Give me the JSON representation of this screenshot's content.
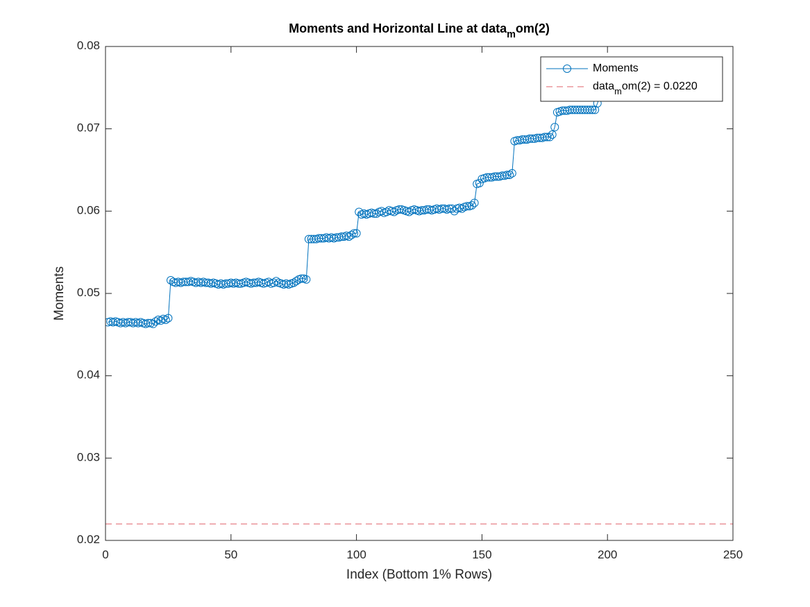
{
  "chart_data": {
    "type": "line",
    "title": "Moments and Horizontal Line at data_mom(2)",
    "x_label": "Index (Bottom 1% Rows)",
    "y_label": "Moments",
    "x": [
      1,
      2,
      3,
      4,
      5,
      6,
      7,
      8,
      9,
      10,
      11,
      12,
      13,
      14,
      15,
      16,
      17,
      18,
      19,
      20,
      21,
      22,
      23,
      24,
      25,
      26,
      27,
      28,
      29,
      30,
      31,
      32,
      33,
      34,
      35,
      36,
      37,
      38,
      39,
      40,
      41,
      42,
      43,
      44,
      45,
      46,
      47,
      48,
      49,
      50,
      51,
      52,
      53,
      54,
      55,
      56,
      57,
      58,
      59,
      60,
      61,
      62,
      63,
      64,
      65,
      66,
      67,
      68,
      69,
      70,
      71,
      72,
      73,
      74,
      75,
      76,
      77,
      78,
      79,
      80,
      81,
      82,
      83,
      84,
      85,
      86,
      87,
      88,
      89,
      90,
      91,
      92,
      93,
      94,
      95,
      96,
      97,
      98,
      99,
      100,
      101,
      102,
      103,
      104,
      105,
      106,
      107,
      108,
      109,
      110,
      111,
      112,
      113,
      114,
      115,
      116,
      117,
      118,
      119,
      120,
      121,
      122,
      123,
      124,
      125,
      126,
      127,
      128,
      129,
      130,
      131,
      132,
      133,
      134,
      135,
      136,
      137,
      138,
      139,
      140,
      141,
      142,
      143,
      144,
      145,
      146,
      147,
      148,
      149,
      150,
      151,
      152,
      153,
      154,
      155,
      156,
      157,
      158,
      159,
      160,
      161,
      162,
      163,
      164,
      165,
      166,
      167,
      168,
      169,
      170,
      171,
      172,
      173,
      174,
      175,
      176,
      177,
      178,
      179,
      180,
      181,
      182,
      183,
      184,
      185,
      186,
      187,
      188,
      189,
      190,
      191,
      192,
      193,
      194,
      195,
      196,
      197,
      198,
      199,
      200
    ],
    "series": [
      {
        "name": "Moments",
        "color": "#0072bd",
        "marker": "circle",
        "values": [
          0.0465,
          0.0466,
          0.0465,
          0.0466,
          0.0465,
          0.0464,
          0.0465,
          0.0464,
          0.0465,
          0.0465,
          0.0464,
          0.0465,
          0.0464,
          0.0465,
          0.0464,
          0.0463,
          0.0464,
          0.0464,
          0.0463,
          0.0466,
          0.0468,
          0.0467,
          0.0469,
          0.0468,
          0.047,
          0.0516,
          0.0514,
          0.0513,
          0.0514,
          0.0513,
          0.0514,
          0.0514,
          0.0514,
          0.0515,
          0.0514,
          0.0513,
          0.0514,
          0.0513,
          0.0514,
          0.0513,
          0.0513,
          0.0512,
          0.0513,
          0.0512,
          0.0511,
          0.0512,
          0.0511,
          0.0512,
          0.0512,
          0.0513,
          0.0512,
          0.0513,
          0.0512,
          0.0512,
          0.0513,
          0.0514,
          0.0513,
          0.0512,
          0.0513,
          0.0513,
          0.0514,
          0.0513,
          0.0512,
          0.0513,
          0.0514,
          0.0512,
          0.0513,
          0.0515,
          0.0513,
          0.0512,
          0.0511,
          0.0512,
          0.0511,
          0.0512,
          0.0513,
          0.0515,
          0.0517,
          0.0518,
          0.0518,
          0.0517,
          0.0566,
          0.0566,
          0.0566,
          0.0566,
          0.0567,
          0.0567,
          0.0567,
          0.0568,
          0.0567,
          0.0568,
          0.0567,
          0.0568,
          0.0568,
          0.0569,
          0.0569,
          0.057,
          0.0569,
          0.0571,
          0.0573,
          0.0573,
          0.0599,
          0.0596,
          0.0597,
          0.0596,
          0.0597,
          0.0598,
          0.0597,
          0.0597,
          0.0599,
          0.06,
          0.0598,
          0.0599,
          0.0601,
          0.06,
          0.0599,
          0.0601,
          0.0602,
          0.0602,
          0.0601,
          0.06,
          0.0599,
          0.0601,
          0.0602,
          0.0601,
          0.06,
          0.0601,
          0.0601,
          0.0602,
          0.0602,
          0.0601,
          0.0602,
          0.0603,
          0.0602,
          0.0603,
          0.0603,
          0.0602,
          0.0603,
          0.0603,
          0.06,
          0.0603,
          0.0604,
          0.0603,
          0.0605,
          0.0606,
          0.0606,
          0.0607,
          0.061,
          0.0633,
          0.0634,
          0.0639,
          0.064,
          0.0641,
          0.0641,
          0.0641,
          0.0642,
          0.0642,
          0.0642,
          0.0643,
          0.0643,
          0.0644,
          0.0644,
          0.0646,
          0.0685,
          0.0686,
          0.0686,
          0.0687,
          0.0687,
          0.0687,
          0.0688,
          0.0688,
          0.0688,
          0.0689,
          0.0689,
          0.0689,
          0.069,
          0.069,
          0.069,
          0.0693,
          0.0702,
          0.072,
          0.0721,
          0.0722,
          0.0722,
          0.0722,
          0.0723,
          0.0723,
          0.0723,
          0.0723,
          0.0723,
          0.0723,
          0.0723,
          0.0723,
          0.0723,
          0.0723,
          0.0723,
          0.0731,
          0.074,
          0.075,
          0.076,
          0.077
        ]
      }
    ],
    "hline": {
      "name": "data_mom(2) = 0.0220",
      "value": 0.022,
      "color": "#e0606a",
      "style": "dashed"
    },
    "xlim": [
      0,
      250
    ],
    "xticks": [
      0,
      50,
      100,
      150,
      200,
      250
    ],
    "ylim": [
      0.02,
      0.08
    ],
    "yticks": [
      0.02,
      0.03,
      0.04,
      0.05,
      0.06,
      0.07,
      0.08
    ],
    "legend": "upper-right",
    "grid": false
  }
}
